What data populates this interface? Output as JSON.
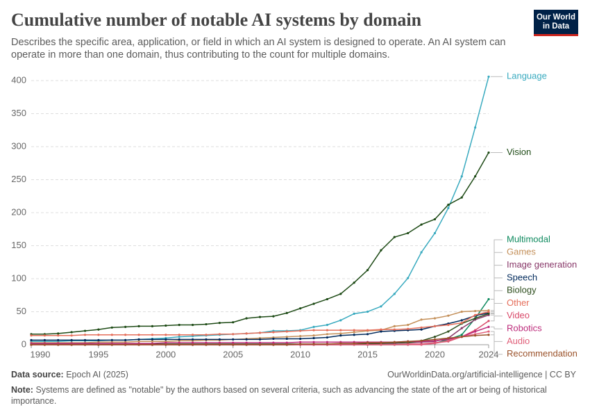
{
  "chart_data": {
    "type": "line",
    "title": "Cumulative number of notable AI systems by domain",
    "subtitle": "Describes the specific area, application, or field in which an AI system is designed to operate. An AI system can operate in more than one domain, thus contributing to the count for multiple domains.",
    "x": [
      1990,
      1991,
      1992,
      1993,
      1994,
      1995,
      1996,
      1997,
      1998,
      1999,
      2000,
      2001,
      2002,
      2003,
      2004,
      2005,
      2006,
      2007,
      2008,
      2009,
      2010,
      2011,
      2012,
      2013,
      2014,
      2015,
      2016,
      2017,
      2018,
      2019,
      2020,
      2021,
      2022,
      2023,
      2024
    ],
    "xlim": [
      1990,
      2024
    ],
    "xticks": [
      1990,
      1995,
      2000,
      2005,
      2010,
      2015,
      2020,
      2024
    ],
    "ylim": [
      0,
      400
    ],
    "yticks": [
      0,
      50,
      100,
      150,
      200,
      250,
      300,
      350,
      400
    ],
    "grid": true,
    "series": [
      {
        "name": "Language",
        "color": "#38aabf",
        "values": [
          5,
          5,
          5,
          6,
          6,
          6,
          7,
          7,
          8,
          9,
          10,
          12,
          13,
          14,
          15,
          16,
          17,
          18,
          21,
          21,
          22,
          27,
          30,
          37,
          47,
          50,
          58,
          77,
          101,
          140,
          169,
          207,
          255,
          329,
          406
        ]
      },
      {
        "name": "Vision",
        "color": "#1d4a15",
        "values": [
          16,
          16,
          17,
          19,
          21,
          23,
          26,
          27,
          28,
          28,
          29,
          30,
          30,
          31,
          33,
          34,
          40,
          42,
          43,
          48,
          55,
          62,
          69,
          77,
          94,
          113,
          143,
          163,
          169,
          182,
          190,
          212,
          223,
          255,
          291
        ]
      },
      {
        "name": "Multimodal",
        "color": "#0f8a5f",
        "values": [
          0,
          0,
          0,
          0,
          0,
          0,
          0,
          0,
          0,
          0,
          0,
          0,
          0,
          0,
          0,
          0,
          0,
          0,
          0,
          0,
          0,
          0,
          0,
          0,
          0,
          0,
          0,
          0,
          0,
          1,
          2,
          8,
          15,
          40,
          69
        ]
      },
      {
        "name": "Games",
        "color": "#c4905a",
        "values": [
          3,
          3,
          3,
          3,
          3,
          4,
          4,
          4,
          5,
          5,
          5,
          6,
          6,
          7,
          7,
          8,
          9,
          10,
          11,
          12,
          13,
          14,
          16,
          17,
          19,
          21,
          22,
          28,
          30,
          38,
          40,
          44,
          50,
          51,
          52
        ]
      },
      {
        "name": "Image generation",
        "color": "#883869",
        "values": [
          0,
          0,
          0,
          0,
          0,
          0,
          0,
          0,
          0,
          0,
          0,
          0,
          0,
          0,
          0,
          0,
          0,
          0,
          0,
          0,
          0,
          0,
          0,
          0,
          1,
          1,
          2,
          2,
          3,
          4,
          5,
          10,
          25,
          38,
          45
        ]
      },
      {
        "name": "Speech",
        "color": "#00295b",
        "values": [
          7,
          7,
          7,
          7,
          7,
          7,
          7,
          7,
          8,
          8,
          8,
          8,
          8,
          8,
          8,
          8,
          8,
          8,
          9,
          9,
          9,
          10,
          11,
          14,
          15,
          16,
          20,
          21,
          22,
          23,
          28,
          32,
          37,
          44,
          48
        ]
      },
      {
        "name": "Biology",
        "color": "#2f4f1f",
        "values": [
          1,
          1,
          1,
          1,
          1,
          1,
          1,
          1,
          1,
          1,
          1,
          1,
          1,
          1,
          1,
          1,
          1,
          1,
          1,
          1,
          1,
          1,
          1,
          1,
          1,
          2,
          2,
          3,
          3,
          6,
          12,
          20,
          32,
          40,
          47
        ]
      },
      {
        "name": "Other",
        "color": "#e56e5a",
        "values": [
          14,
          14,
          14,
          14,
          15,
          15,
          15,
          15,
          15,
          15,
          15,
          15,
          15,
          15,
          16,
          16,
          17,
          18,
          19,
          20,
          21,
          22,
          22,
          22,
          22,
          22,
          23,
          23,
          24,
          26,
          28,
          30,
          33,
          45,
          50
        ]
      },
      {
        "name": "Video",
        "color": "#d94a6a",
        "values": [
          0,
          0,
          0,
          0,
          0,
          0,
          0,
          0,
          0,
          0,
          0,
          0,
          0,
          0,
          0,
          0,
          0,
          0,
          0,
          0,
          0,
          0,
          0,
          0,
          0,
          0,
          0,
          0,
          1,
          1,
          3,
          5,
          12,
          22,
          36
        ]
      },
      {
        "name": "Robotics",
        "color": "#bc2a7a",
        "values": [
          2,
          2,
          2,
          2,
          2,
          2,
          2,
          2,
          2,
          2,
          3,
          3,
          3,
          3,
          3,
          3,
          3,
          3,
          3,
          3,
          4,
          4,
          4,
          4,
          4,
          4,
          4,
          4,
          5,
          5,
          6,
          8,
          12,
          20,
          27
        ]
      },
      {
        "name": "Audio",
        "color": "#e0607a",
        "values": [
          0,
          0,
          0,
          0,
          0,
          0,
          0,
          0,
          0,
          0,
          0,
          0,
          0,
          0,
          0,
          0,
          0,
          0,
          0,
          0,
          0,
          0,
          0,
          0,
          0,
          0,
          0,
          0,
          0,
          0,
          2,
          6,
          12,
          16,
          20
        ]
      },
      {
        "name": "Recommendation",
        "color": "#9a5129",
        "values": [
          0,
          0,
          0,
          0,
          0,
          0,
          0,
          0,
          0,
          0,
          0,
          0,
          0,
          0,
          0,
          0,
          0,
          0,
          0,
          0,
          1,
          1,
          1,
          2,
          2,
          3,
          3,
          4,
          5,
          6,
          8,
          10,
          12,
          14,
          15
        ]
      }
    ]
  },
  "logo": {
    "line1": "Our World",
    "line2": "in Data"
  },
  "footer": {
    "source_label": "Data source:",
    "source": "Epoch AI (2025)",
    "url": "OurWorldinData.org/artificial-intelligence | CC BY",
    "note_label": "Note:",
    "note": "Systems are defined as \"notable\" by the authors based on several criteria, such as advancing the state of the art or being of historical importance."
  }
}
